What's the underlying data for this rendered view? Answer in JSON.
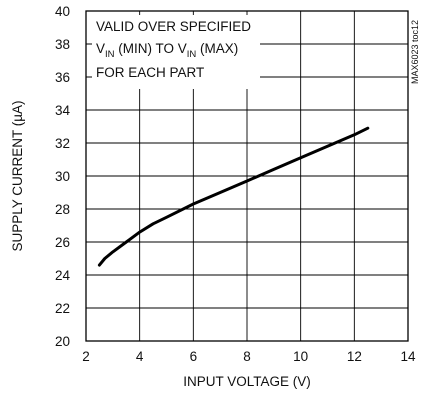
{
  "chart_data": {
    "type": "line",
    "title": "",
    "xlabel": "INPUT VOLTAGE (V)",
    "ylabel": "SUPPLY CURRENT (µA)",
    "xlim": [
      2,
      14
    ],
    "ylim": [
      20,
      40
    ],
    "xticks": [
      2,
      4,
      6,
      8,
      10,
      12,
      14
    ],
    "yticks": [
      20,
      22,
      24,
      26,
      28,
      30,
      32,
      34,
      36,
      38,
      40
    ],
    "grid": true,
    "annotation": {
      "line1": "VALID OVER SPECIFIED",
      "line2_parts": [
        "V",
        "IN",
        " (MIN) TO V",
        "IN",
        " (MAX)"
      ],
      "line3": "FOR EACH PART"
    },
    "part_code": "MAX6023 toc12",
    "series": [
      {
        "x": [
          2.5,
          2.7,
          3.0,
          3.5,
          4.0,
          4.5,
          5.0,
          6.0,
          7.0,
          8.0,
          9.0,
          10.0,
          11.0,
          12.0,
          12.5
        ],
        "y": [
          24.6,
          25.0,
          25.4,
          26.0,
          26.6,
          27.1,
          27.5,
          28.3,
          29.0,
          29.7,
          30.4,
          31.1,
          31.8,
          32.5,
          32.9
        ]
      }
    ],
    "line_color": "#000000"
  }
}
